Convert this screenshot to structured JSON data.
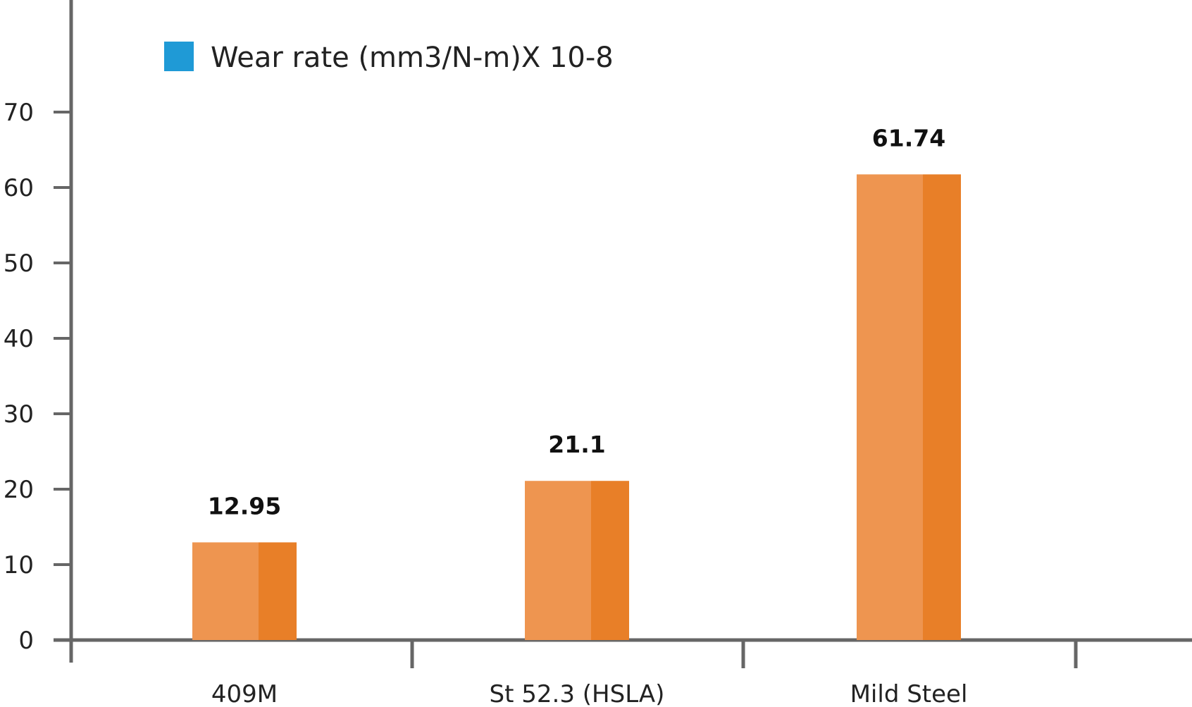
{
  "chart_data": {
    "type": "bar",
    "categories": [
      "409M",
      "St 52.3 (HSLA)",
      "Mild Steel"
    ],
    "series": [
      {
        "name": "Wear rate (mm3/N-m)X 10-8",
        "values": [
          12.95,
          21.1,
          61.74
        ]
      }
    ],
    "value_labels": [
      "12.95",
      "21.1",
      "61.74"
    ],
    "yticks": [
      "0",
      "10",
      "20",
      "30",
      "40",
      "50",
      "60",
      "70"
    ],
    "ylim": [
      0,
      70
    ],
    "xlabel": "",
    "ylabel": "",
    "grid": false,
    "legend_position": "top-left",
    "colors": {
      "legend_swatch": "#1f9ad6",
      "bar_light": "#ee9550",
      "bar_dark": "#e87f28",
      "axis": "#666666"
    }
  }
}
